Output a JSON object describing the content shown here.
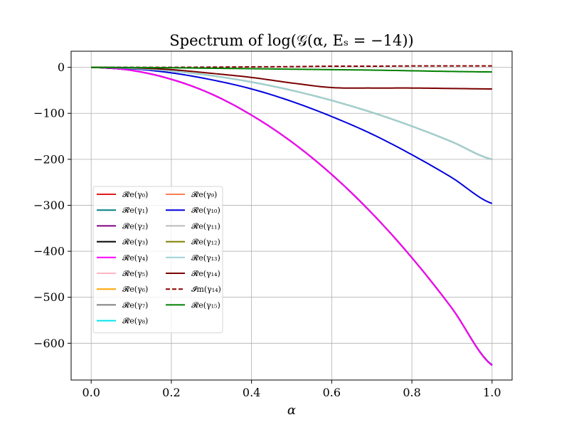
{
  "chart_data": {
    "type": "line",
    "title": "Spectrum of log(𝒢(α, Eₛ = −14))",
    "xlabel": "α",
    "ylabel": "",
    "xlim": [
      -0.05,
      1.05
    ],
    "ylim": [
      -680,
      35
    ],
    "x_ticks": [
      0.0,
      0.2,
      0.4,
      0.6,
      0.8,
      1.0
    ],
    "x_tick_labels": [
      "0.0",
      "0.2",
      "0.4",
      "0.6",
      "0.8",
      "1.0"
    ],
    "y_ticks": [
      0,
      -100,
      -200,
      -300,
      -400,
      -500,
      -600
    ],
    "y_tick_labels": [
      "0",
      "−100",
      "−200",
      "−300",
      "−400",
      "−500",
      "−600"
    ],
    "grid": true,
    "legend_position": "center-left",
    "legend_columns": 2,
    "x": [
      0.0,
      0.1,
      0.2,
      0.3,
      0.4,
      0.5,
      0.6,
      0.7,
      0.8,
      0.9,
      1.0
    ],
    "series": [
      {
        "name": "𝓡e(γ₀)",
        "color": "#e41a1c",
        "dashed": false,
        "values": [
          0,
          -6.5,
          -26,
          -58,
          -104,
          -162,
          -233,
          -317,
          -414,
          -524,
          -648
        ]
      },
      {
        "name": "𝓡e(γ₁)",
        "color": "#008080",
        "dashed": false,
        "values": [
          0,
          -6.5,
          -26,
          -58,
          -104,
          -162,
          -233,
          -317,
          -414,
          -524,
          -647
        ]
      },
      {
        "name": "𝓡e(γ₂)",
        "color": "#800080",
        "dashed": false,
        "values": [
          0,
          -6.5,
          -26,
          -58,
          -104,
          -162,
          -233,
          -317,
          -414,
          -524,
          -648
        ]
      },
      {
        "name": "𝓡e(γ₃)",
        "color": "#000000",
        "dashed": false,
        "values": [
          0,
          -6.5,
          -26,
          -58,
          -104,
          -162,
          -233,
          -317,
          -414,
          -524,
          -648
        ]
      },
      {
        "name": "𝓡e(γ₄)",
        "color": "#ff00ff",
        "dashed": false,
        "values": [
          0,
          -6.5,
          -26,
          -58,
          -104,
          -162,
          -233,
          -317,
          -414,
          -524,
          -648
        ]
      },
      {
        "name": "𝓡e(γ₅)",
        "color": "#ffb6c1",
        "dashed": false,
        "values": [
          0,
          -2,
          -8,
          -18,
          -32,
          -50,
          -72,
          -98,
          -128,
          -162,
          -200
        ]
      },
      {
        "name": "𝓡e(γ₆)",
        "color": "#ffa500",
        "dashed": false,
        "values": [
          0,
          -2,
          -8,
          -18,
          -32,
          -50,
          -72,
          -98,
          -128,
          -162,
          -200
        ]
      },
      {
        "name": "𝓡e(γ₇)",
        "color": "#808080",
        "dashed": false,
        "values": [
          0,
          -2,
          -8,
          -18,
          -32,
          -50,
          -72,
          -98,
          -128,
          -162,
          -200
        ]
      },
      {
        "name": "𝓡e(γ₈)",
        "color": "#00e5ee",
        "dashed": false,
        "values": [
          0,
          -2,
          -8,
          -18,
          -32,
          -50,
          -72,
          -98,
          -128,
          -162,
          -200
        ]
      },
      {
        "name": "𝓡e(γ₉)",
        "color": "#ff7f50",
        "dashed": false,
        "values": [
          0,
          -2,
          -8,
          -18,
          -32,
          -50,
          -72,
          -98,
          -128,
          -162,
          -200
        ]
      },
      {
        "name": "𝓡e(γ₁₀)",
        "color": "#0000dd",
        "dashed": false,
        "values": [
          0,
          -3,
          -12,
          -27,
          -47,
          -74,
          -107,
          -145,
          -190,
          -240,
          -296
        ]
      },
      {
        "name": "𝓡e(γ₁₁)",
        "color": "#bbbbbb",
        "dashed": false,
        "values": [
          0,
          -2,
          -8,
          -18,
          -32,
          -50,
          -72,
          -98,
          -128,
          -162,
          -200
        ]
      },
      {
        "name": "𝓡e(γ₁₂)",
        "color": "#808000",
        "dashed": false,
        "values": [
          0,
          -2,
          -8,
          -18,
          -32,
          -50,
          -72,
          -98,
          -128,
          -162,
          -200
        ]
      },
      {
        "name": "𝓡e(γ₁₃)",
        "color": "#9ed3dc",
        "dashed": false,
        "values": [
          0,
          -2,
          -8,
          -18,
          -32,
          -50,
          -72,
          -98,
          -128,
          -162,
          -200
        ]
      },
      {
        "name": "𝓡e(γ₁₄)",
        "color": "#7a0000",
        "dashed": false,
        "values": [
          0,
          -1,
          -5,
          -13,
          -22,
          -34,
          -44,
          -45,
          -45,
          -46,
          -47
        ]
      },
      {
        "name": "𝓘m(γ₁₄)",
        "color": "#8b0000",
        "dashed": true,
        "values": [
          0,
          0,
          0,
          0.5,
          1,
          1.5,
          2.5,
          2.5,
          3,
          3,
          3
        ]
      },
      {
        "name": "𝓡e(γ₁₅)",
        "color": "#008000",
        "dashed": false,
        "values": [
          0,
          -0.5,
          -1,
          -2,
          -3,
          -4,
          -5,
          -6,
          -7.5,
          -9,
          -10
        ]
      }
    ]
  }
}
